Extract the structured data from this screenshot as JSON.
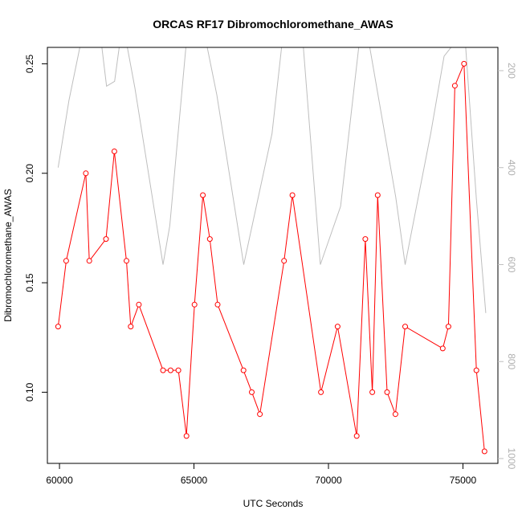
{
  "chart_data": {
    "type": "line",
    "title": "ORCAS RF17 Dibromochloromethane_AWAS",
    "xlabel": "UTC Seconds",
    "ylabel": "Dibromochloromethane_AWAS",
    "xlim": [
      59550,
      76300
    ],
    "ylim": [
      0.0675,
      0.2575
    ],
    "x_ticks": [
      60000,
      65000,
      70000,
      75000
    ],
    "y_ticks": [
      0.1,
      0.15,
      0.2,
      0.25
    ],
    "y2_ticks": [
      200,
      400,
      600,
      800,
      1000
    ],
    "y2lim_reversed": [
      1010,
      152
    ],
    "colors": {
      "primary": "#ff0000",
      "secondary": "#bebebe"
    },
    "series": [
      {
        "axis": "left",
        "marker": "circle",
        "points": [
          [
            59950,
            0.13
          ],
          [
            60250,
            0.16
          ],
          [
            60980,
            0.2
          ],
          [
            61110,
            0.16
          ],
          [
            61730,
            0.17
          ],
          [
            62040,
            0.21
          ],
          [
            62490,
            0.16
          ],
          [
            62650,
            0.13
          ],
          [
            62950,
            0.14
          ],
          [
            63850,
            0.11
          ],
          [
            64130,
            0.11
          ],
          [
            64420,
            0.11
          ],
          [
            64720,
            0.08
          ],
          [
            65020,
            0.14
          ],
          [
            65330,
            0.19
          ],
          [
            65590,
            0.17
          ],
          [
            65880,
            0.14
          ],
          [
            66840,
            0.11
          ],
          [
            67150,
            0.1
          ],
          [
            67450,
            0.09
          ],
          [
            68350,
            0.16
          ],
          [
            68660,
            0.19
          ],
          [
            69720,
            0.1
          ],
          [
            70340,
            0.13
          ],
          [
            71050,
            0.08
          ],
          [
            71370,
            0.17
          ],
          [
            71630,
            0.1
          ],
          [
            71830,
            0.19
          ],
          [
            72180,
            0.1
          ],
          [
            72490,
            0.09
          ],
          [
            72850,
            0.13
          ],
          [
            74250,
            0.12
          ],
          [
            74460,
            0.13
          ],
          [
            74700,
            0.24
          ],
          [
            75040,
            0.25
          ],
          [
            75500,
            0.11
          ],
          [
            75800,
            0.073
          ]
        ]
      },
      {
        "axis": "right",
        "marker": "none",
        "points": [
          [
            59950,
            400
          ],
          [
            60350,
            262
          ],
          [
            60800,
            140
          ],
          [
            61100,
            130
          ],
          [
            61550,
            140
          ],
          [
            61750,
            232
          ],
          [
            62050,
            222
          ],
          [
            62250,
            140
          ],
          [
            62450,
            130
          ],
          [
            62800,
            235
          ],
          [
            63850,
            600
          ],
          [
            64100,
            520
          ],
          [
            64750,
            120
          ],
          [
            65100,
            120
          ],
          [
            65450,
            140
          ],
          [
            65850,
            250
          ],
          [
            66850,
            600
          ],
          [
            67900,
            330
          ],
          [
            68300,
            130
          ],
          [
            68650,
            130
          ],
          [
            69050,
            140
          ],
          [
            69700,
            600
          ],
          [
            70450,
            480
          ],
          [
            71150,
            140
          ],
          [
            71500,
            140
          ],
          [
            72500,
            460
          ],
          [
            72850,
            600
          ],
          [
            73800,
            330
          ],
          [
            74300,
            170
          ],
          [
            74800,
            135
          ],
          [
            75100,
            150
          ],
          [
            75500,
            465
          ],
          [
            75850,
            700
          ]
        ]
      }
    ]
  }
}
